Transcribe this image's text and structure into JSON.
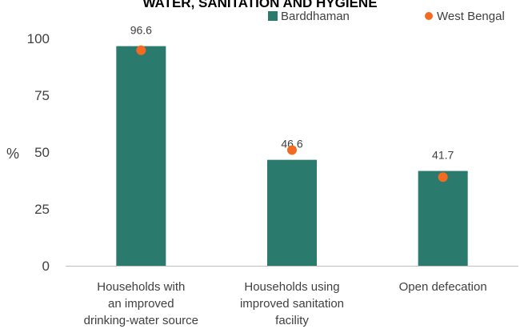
{
  "chart_data": {
    "type": "bar",
    "title": "WATER, SANITATION AND HYGIENE",
    "ylabel": "%",
    "ylim": [
      0,
      100
    ],
    "yticks": [
      0,
      25,
      50,
      75,
      100
    ],
    "categories": [
      [
        "Households with",
        "an improved",
        "drinking-water source"
      ],
      [
        "Households using",
        "improved sanitation",
        "facility"
      ],
      [
        "Open defecation"
      ]
    ],
    "series": [
      {
        "name": "Barddhaman",
        "kind": "bar",
        "values": [
          96.6,
          46.6,
          41.7
        ],
        "labels": [
          "96.6",
          "46.6",
          "41.7"
        ]
      },
      {
        "name": "West Bengal",
        "kind": "marker",
        "values": [
          94.8,
          50.9,
          39.0
        ]
      }
    ],
    "legend_position": "top-right",
    "grid": false
  },
  "colors": {
    "bar": "#2a7a6e",
    "marker": "#f26b21",
    "text": "#404040",
    "axis": "#bfbfbf"
  }
}
